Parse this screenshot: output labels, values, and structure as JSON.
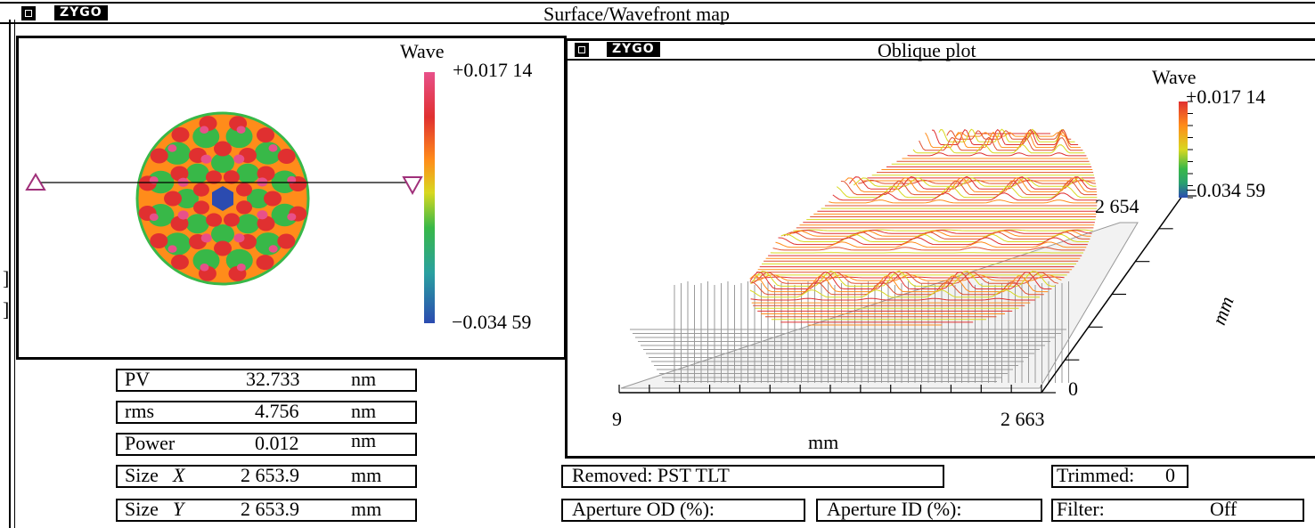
{
  "main_window": {
    "logo": "ZYGO",
    "title": "Surface/Wavefront map"
  },
  "surface_map": {
    "colorbar_title": "Wave",
    "colorbar_max": "+0.017 14",
    "colorbar_min": "−0.034 59"
  },
  "oblique_window": {
    "logo": "ZYGO",
    "title": "Oblique plot",
    "colorbar_title": "Wave",
    "colorbar_max": "+0.017 14",
    "colorbar_min": "−0.034 59",
    "x_axis_start": "9",
    "x_axis_end": "2 663",
    "x_axis_unit": "mm",
    "y_axis_start": "0",
    "y_axis_end": "2 654",
    "y_axis_unit": "mm"
  },
  "stats": [
    {
      "label": "PV",
      "value": "32.733",
      "unit": "nm"
    },
    {
      "label": "rms",
      "value": "4.756",
      "unit": "nm"
    },
    {
      "label": "Power",
      "value": "0.012",
      "unit": "nm"
    },
    {
      "label": "Size",
      "axis": "X",
      "value": "2 653.9",
      "unit": "mm"
    },
    {
      "label": "Size",
      "axis": "Y",
      "value": "2 653.9",
      "unit": "mm"
    }
  ],
  "info": {
    "removed": "Removed: PST TLT",
    "trimmed_label": "Trimmed:",
    "trimmed_value": "0",
    "aperture_od": "Aperture OD (%):",
    "aperture_id": "Aperture ID (%):",
    "filter_label": "Filter:",
    "filter_value": "Off"
  },
  "colors": {
    "red": "#e03030",
    "orange": "#ff8c1a",
    "yellow": "#d8d820",
    "green": "#38b848",
    "blue": "#2b4bb0",
    "pink": "#e8508a"
  }
}
